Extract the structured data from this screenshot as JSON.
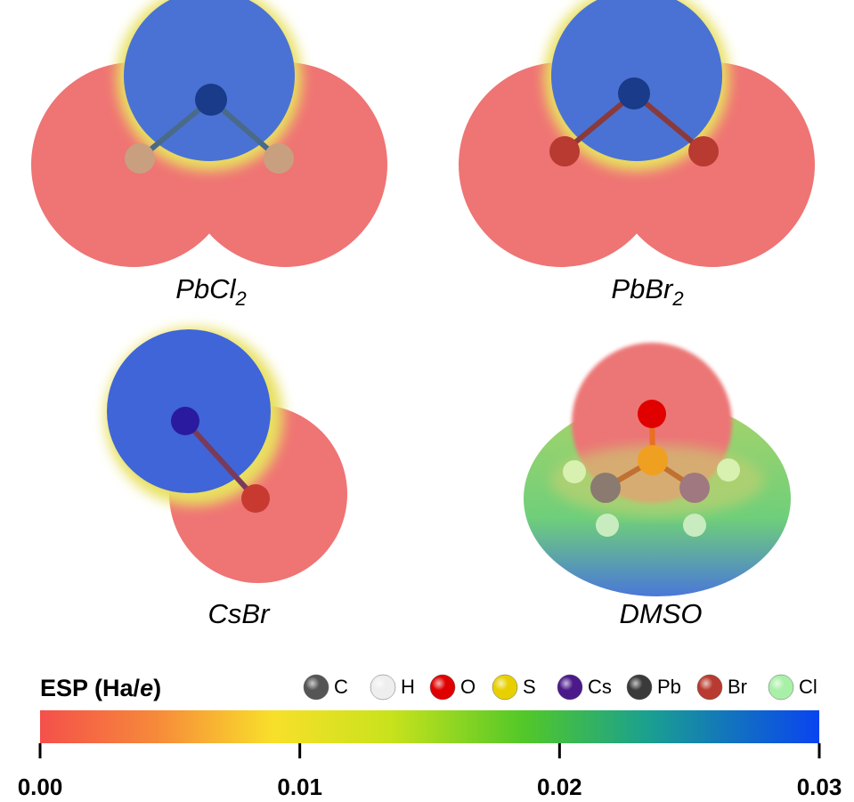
{
  "panels": [
    {
      "formula": "PbCl",
      "subscript": "2"
    },
    {
      "formula": "PbBr",
      "subscript": "2"
    },
    {
      "formula": "CsBr"
    },
    {
      "formula": "DMSO"
    }
  ],
  "legend": [
    {
      "label": "C",
      "color": "#555555"
    },
    {
      "label": "H",
      "color": "#eeeeee"
    },
    {
      "label": "O",
      "color": "#e00000"
    },
    {
      "label": "S",
      "color": "#e8d000"
    },
    {
      "label": "Cs",
      "color": "#4a1a8a"
    },
    {
      "label": "Pb",
      "color": "#3a3a3a"
    },
    {
      "label": "Br",
      "color": "#b83a30"
    },
    {
      "label": "Cl",
      "color": "#a8f0a8"
    }
  ],
  "colorbar": {
    "title": "ESP (Ha/",
    "title_italic": "e",
    "title_end": ")",
    "range": [
      0,
      0.03
    ],
    "ticks": [
      {
        "value": 0,
        "label": "0.00"
      },
      {
        "value": 0.01,
        "label": "0.01"
      },
      {
        "value": 0.02,
        "label": "0.02"
      },
      {
        "value": 0.03,
        "label": "0.03"
      }
    ]
  }
}
